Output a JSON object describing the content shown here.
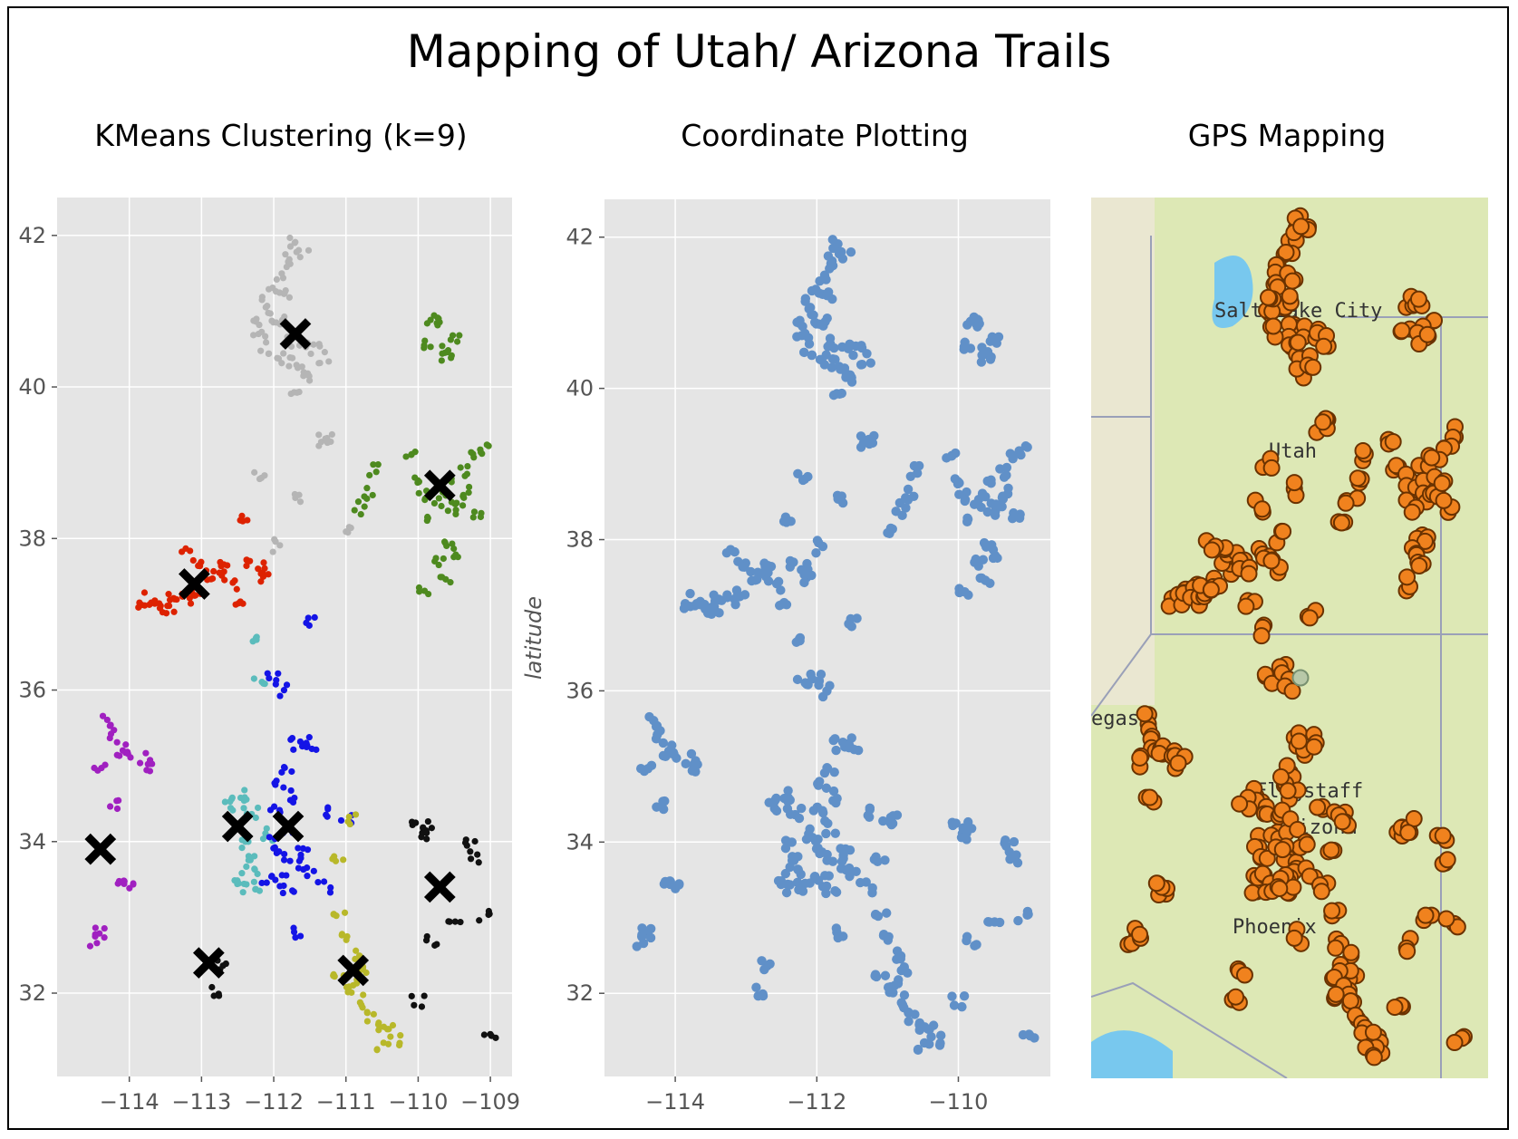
{
  "figure": {
    "title": "Mapping of Utah/ Arizona Trails",
    "panel_titles": [
      "KMeans Clustering (k=9)",
      "Coordinate Plotting",
      "GPS Mapping"
    ]
  },
  "chart_data": [
    {
      "type": "scatter",
      "title": "KMeans Clustering (k=9)",
      "xlabel": "",
      "ylabel": "",
      "xlim": [
        -115.0,
        -108.7
      ],
      "ylim": [
        30.9,
        42.5
      ],
      "xticks": [
        -114,
        -113,
        -112,
        -111,
        -110,
        -109
      ],
      "yticks": [
        32,
        34,
        36,
        38,
        40,
        42
      ],
      "xtick_labels": [
        "−114",
        "−113",
        "−112",
        "−111",
        "−110",
        "−109"
      ],
      "ytick_labels": [
        "32",
        "34",
        "36",
        "38",
        "40",
        "42"
      ],
      "grid": true,
      "background": "#e5e5e5",
      "series": [
        {
          "color": "#b5b5b5",
          "points": [
            [
              -111.7,
              41.9
            ],
            [
              -111.8,
              41.7
            ],
            [
              -111.9,
              41.5
            ],
            [
              -112.0,
              41.3
            ],
            [
              -112.1,
              41.1
            ],
            [
              -112.0,
              40.9
            ],
            [
              -111.9,
              40.9
            ],
            [
              -112.2,
              40.7
            ],
            [
              -111.8,
              40.6
            ],
            [
              -111.6,
              40.5
            ],
            [
              -111.9,
              40.4
            ],
            [
              -111.7,
              40.3
            ],
            [
              -111.6,
              40.2
            ],
            [
              -111.4,
              40.5
            ],
            [
              -111.3,
              40.4
            ],
            [
              -112.2,
              40.9
            ],
            [
              -111.7,
              40.0
            ],
            [
              -111.5,
              40.1
            ],
            [
              -111.3,
              39.3
            ],
            [
              -111.2,
              39.3
            ],
            [
              -112.2,
              38.8
            ],
            [
              -111.7,
              38.5
            ],
            [
              -112.0,
              37.9
            ],
            [
              -111.0,
              38.1
            ],
            [
              -112.1,
              40.5
            ],
            [
              -111.6,
              41.8
            ],
            [
              -111.8,
              41.2
            ]
          ]
        },
        {
          "color": "#4e8a1f",
          "points": [
            [
              -109.8,
              40.9
            ],
            [
              -109.7,
              40.9
            ],
            [
              -109.9,
              40.6
            ],
            [
              -109.6,
              40.5
            ],
            [
              -109.5,
              40.6
            ],
            [
              -109.6,
              40.4
            ],
            [
              -109.1,
              39.2
            ],
            [
              -109.2,
              39.1
            ],
            [
              -110.1,
              39.1
            ],
            [
              -110.6,
              38.9
            ],
            [
              -110.7,
              38.6
            ],
            [
              -110.8,
              38.4
            ],
            [
              -110.0,
              38.8
            ],
            [
              -109.9,
              38.6
            ],
            [
              -109.7,
              38.5
            ],
            [
              -109.6,
              38.7
            ],
            [
              -109.5,
              38.4
            ],
            [
              -109.4,
              38.5
            ],
            [
              -109.3,
              38.6
            ],
            [
              -109.8,
              38.3
            ],
            [
              -109.6,
              37.9
            ],
            [
              -109.5,
              37.8
            ],
            [
              -109.7,
              37.7
            ],
            [
              -109.6,
              37.5
            ],
            [
              -109.9,
              37.3
            ],
            [
              -109.4,
              38.9
            ],
            [
              -109.2,
              38.3
            ]
          ]
        },
        {
          "color": "#dd2200",
          "points": [
            [
              -113.8,
              37.1
            ],
            [
              -113.7,
              37.2
            ],
            [
              -113.6,
              37.1
            ],
            [
              -113.5,
              37.2
            ],
            [
              -113.4,
              37.1
            ],
            [
              -113.3,
              37.2
            ],
            [
              -113.2,
              37.3
            ],
            [
              -113.1,
              37.2
            ],
            [
              -112.9,
              37.5
            ],
            [
              -112.8,
              37.6
            ],
            [
              -112.7,
              37.6
            ],
            [
              -112.6,
              37.4
            ],
            [
              -113.0,
              37.7
            ],
            [
              -112.4,
              38.3
            ],
            [
              -112.3,
              37.7
            ],
            [
              -112.2,
              37.6
            ],
            [
              -112.1,
              37.5
            ],
            [
              -112.5,
              37.1
            ],
            [
              -113.2,
              37.8
            ]
          ]
        },
        {
          "color": "#a020c0",
          "points": [
            [
              -114.5,
              32.7
            ],
            [
              -114.4,
              32.8
            ],
            [
              -114.3,
              35.6
            ],
            [
              -114.2,
              35.4
            ],
            [
              -114.1,
              35.2
            ],
            [
              -114.0,
              35.2
            ],
            [
              -113.8,
              35.1
            ],
            [
              -113.7,
              35.0
            ],
            [
              -114.0,
              33.4
            ],
            [
              -114.1,
              33.4
            ],
            [
              -114.4,
              35.0
            ],
            [
              -114.2,
              34.5
            ]
          ]
        },
        {
          "color": "#5bbcbc",
          "points": [
            [
              -112.3,
              36.7
            ],
            [
              -112.2,
              36.1
            ],
            [
              -112.4,
              34.6
            ],
            [
              -112.5,
              34.5
            ],
            [
              -112.3,
              34.4
            ],
            [
              -112.4,
              34.0
            ],
            [
              -112.3,
              33.8
            ],
            [
              -112.4,
              33.5
            ],
            [
              -112.5,
              33.4
            ],
            [
              -112.3,
              33.6
            ],
            [
              -112.2,
              33.4
            ],
            [
              -112.1,
              34.1
            ],
            [
              -112.6,
              34.5
            ]
          ]
        },
        {
          "color": "#1414e6",
          "points": [
            [
              -112.0,
              36.2
            ],
            [
              -111.9,
              36.0
            ],
            [
              -111.5,
              36.9
            ],
            [
              -111.7,
              35.3
            ],
            [
              -111.6,
              35.2
            ],
            [
              -111.5,
              35.3
            ],
            [
              -111.8,
              34.9
            ],
            [
              -111.9,
              34.8
            ],
            [
              -111.8,
              34.6
            ],
            [
              -112.0,
              34.4
            ],
            [
              -111.8,
              34.2
            ],
            [
              -111.9,
              33.8
            ],
            [
              -111.7,
              33.7
            ],
            [
              -111.6,
              33.9
            ],
            [
              -111.9,
              33.5
            ],
            [
              -111.8,
              33.4
            ],
            [
              -111.5,
              33.6
            ],
            [
              -111.3,
              33.4
            ],
            [
              -112.1,
              33.5
            ],
            [
              -111.3,
              34.4
            ],
            [
              -111.0,
              34.3
            ],
            [
              -111.7,
              32.8
            ],
            [
              -112.0,
              34.0
            ]
          ]
        },
        {
          "color": "#b8b82a",
          "points": [
            [
              -111.1,
              33.8
            ],
            [
              -111.1,
              33.1
            ],
            [
              -111.0,
              32.7
            ],
            [
              -110.9,
              32.5
            ],
            [
              -110.8,
              32.3
            ],
            [
              -111.1,
              32.3
            ],
            [
              -110.9,
              32.1
            ],
            [
              -110.8,
              31.9
            ],
            [
              -110.7,
              31.7
            ],
            [
              -110.6,
              31.6
            ],
            [
              -110.4,
              31.5
            ],
            [
              -110.3,
              31.4
            ],
            [
              -110.5,
              31.3
            ],
            [
              -111.0,
              32.0
            ],
            [
              -110.9,
              34.3
            ]
          ]
        },
        {
          "color": "#111111",
          "points": [
            [
              -110.0,
              34.2
            ],
            [
              -109.9,
              34.1
            ],
            [
              -109.8,
              34.2
            ],
            [
              -109.3,
              34.0
            ],
            [
              -109.2,
              33.8
            ],
            [
              -109.5,
              33.0
            ],
            [
              -109.1,
              33.0
            ],
            [
              -109.8,
              32.7
            ],
            [
              -110.0,
              31.9
            ],
            [
              -109.0,
              31.5
            ],
            [
              -112.8,
              32.0
            ],
            [
              -112.7,
              32.4
            ]
          ]
        }
      ],
      "centroids": [
        [
          -111.7,
          40.7
        ],
        [
          -109.7,
          38.7
        ],
        [
          -113.1,
          37.4
        ],
        [
          -114.4,
          33.9
        ],
        [
          -112.5,
          34.2
        ],
        [
          -111.8,
          34.2
        ],
        [
          -109.7,
          33.4
        ],
        [
          -112.9,
          32.4
        ],
        [
          -110.9,
          32.3
        ]
      ]
    },
    {
      "type": "scatter",
      "title": "Coordinate Plotting",
      "xlabel": "",
      "ylabel": "latitude",
      "xlim": [
        -115.0,
        -108.7
      ],
      "ylim": [
        30.9,
        42.5
      ],
      "xticks": [
        -114,
        -112,
        -110
      ],
      "yticks": [
        32,
        34,
        36,
        38,
        40,
        42
      ],
      "xtick_labels": [
        "−114",
        "−112",
        "−110"
      ],
      "ytick_labels": [
        "32",
        "34",
        "36",
        "38",
        "40",
        "42"
      ],
      "grid": true,
      "background": "#e5e5e5",
      "color": "#6090c8",
      "note": "points identical to the clustered coordinates, single colour"
    },
    {
      "type": "map",
      "title": "GPS Mapping",
      "labels": [
        "Salt Lake City",
        "Utah",
        "egas",
        "Flagstaff",
        "Arizona",
        "Phoenix"
      ],
      "marker_color": "#f0821e",
      "base_color": "#dde8b5",
      "water_color": "#78c8ee"
    }
  ]
}
